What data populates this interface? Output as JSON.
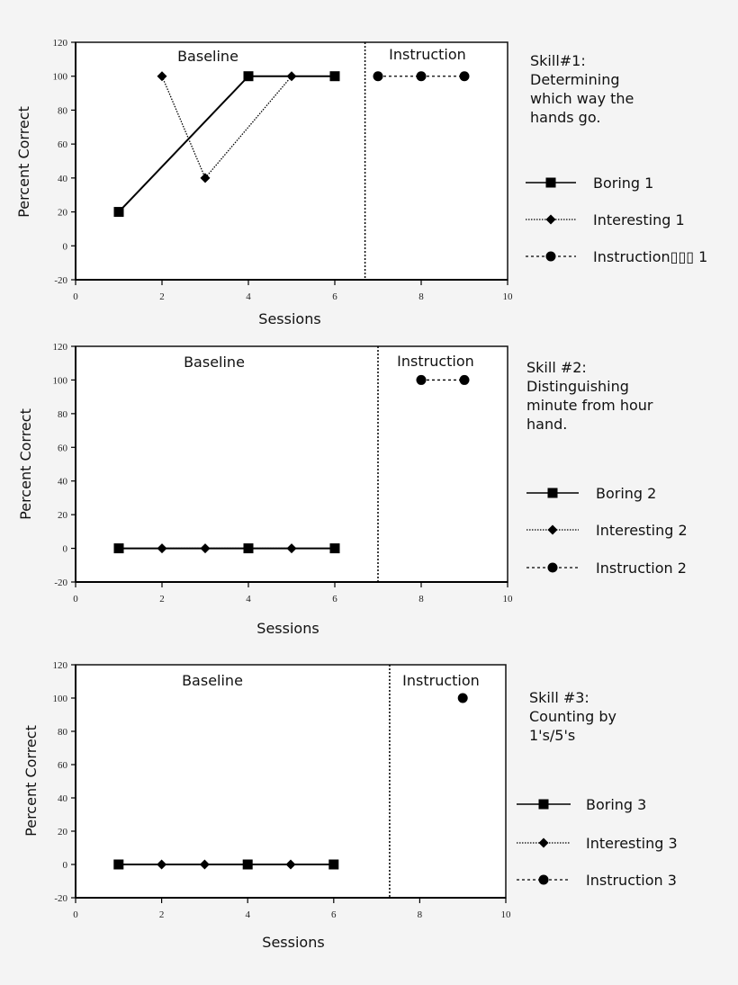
{
  "chart_data": [
    {
      "type": "line",
      "xlabel": "Sessions",
      "ylabel": "Percent  Correct",
      "xlim": [
        0,
        10
      ],
      "ylim": [
        -20,
        120
      ],
      "xticks": [
        "0",
        "2",
        "4",
        "6",
        "8",
        "10"
      ],
      "yticks": [
        "-20",
        "0",
        "20",
        "40",
        "60",
        "80",
        "100",
        "120"
      ],
      "grid": false,
      "legend_placement": "right",
      "phase_labels": [
        "Baseline",
        "Instruction"
      ],
      "phase_change_x": 6.7,
      "annotation": [
        "Skill#1:",
        "Determining",
        "which way the",
        "hands go."
      ],
      "series": [
        {
          "name": "Boring 1",
          "marker": "square",
          "line": "solid",
          "x": [
            1,
            4,
            6
          ],
          "y": [
            20,
            100,
            100
          ]
        },
        {
          "name": "Interesting 1",
          "marker": "diamond",
          "line": "dotted",
          "x": [
            2,
            3,
            5
          ],
          "y": [
            100,
            40,
            100
          ]
        },
        {
          "name": "Instruction▯▯▯ 1",
          "marker": "circle",
          "line": "dashed",
          "x": [
            7,
            8,
            9
          ],
          "y": [
            100,
            100,
            100
          ]
        }
      ]
    },
    {
      "type": "line",
      "xlabel": "Sessions",
      "ylabel": "Percent  Correct",
      "xlim": [
        0,
        10
      ],
      "ylim": [
        -20,
        120
      ],
      "xticks": [
        "0",
        "2",
        "4",
        "6",
        "8",
        "10"
      ],
      "yticks": [
        "-20",
        "0",
        "20",
        "40",
        "60",
        "80",
        "100",
        "120"
      ],
      "grid": false,
      "legend_placement": "right",
      "phase_labels": [
        "Baseline",
        "Instruction"
      ],
      "phase_change_x": 7.0,
      "annotation": [
        "Skill #2:",
        "Distinguishing",
        "minute from hour",
        "hand."
      ],
      "series": [
        {
          "name": "Boring 2",
          "marker": "square",
          "line": "solid",
          "x": [
            1,
            4,
            6
          ],
          "y": [
            0,
            0,
            0
          ]
        },
        {
          "name": "Interesting 2",
          "marker": "diamond",
          "line": "dotted",
          "x": [
            2,
            3,
            5
          ],
          "y": [
            0,
            0,
            0
          ]
        },
        {
          "name": "Instruction 2",
          "marker": "circle",
          "line": "dashed",
          "x": [
            8,
            9
          ],
          "y": [
            100,
            100
          ]
        }
      ]
    },
    {
      "type": "line",
      "xlabel": "Sessions",
      "ylabel": "Percent  Correct",
      "xlim": [
        0,
        10
      ],
      "ylim": [
        -20,
        120
      ],
      "xticks": [
        "0",
        "2",
        "4",
        "6",
        "8",
        "10"
      ],
      "yticks": [
        "-20",
        "0",
        "20",
        "40",
        "60",
        "80",
        "100",
        "120"
      ],
      "grid": false,
      "legend_placement": "right",
      "phase_labels": [
        "Baseline",
        "Instruction"
      ],
      "phase_change_x": 7.3,
      "annotation": [
        "Skill #3:",
        "Counting by",
        "1's/5's"
      ],
      "series": [
        {
          "name": "Boring 3",
          "marker": "square",
          "line": "solid",
          "x": [
            1,
            4,
            6
          ],
          "y": [
            0,
            0,
            0
          ]
        },
        {
          "name": "Interesting  3",
          "marker": "diamond",
          "line": "dotted",
          "x": [
            2,
            3,
            5
          ],
          "y": [
            0,
            0,
            0
          ]
        },
        {
          "name": "Instruction 3",
          "marker": "circle",
          "line": "dashed",
          "x": [
            9
          ],
          "y": [
            100
          ]
        }
      ]
    }
  ]
}
